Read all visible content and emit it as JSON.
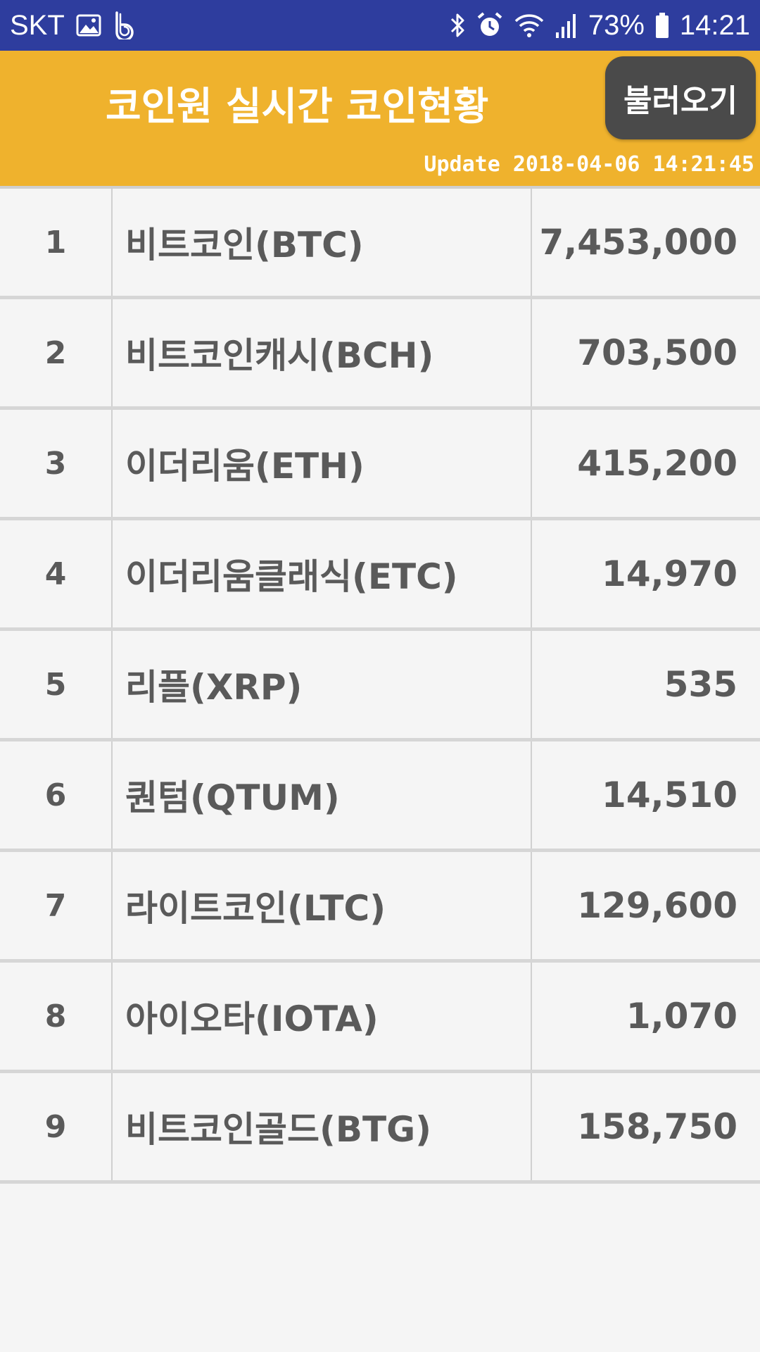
{
  "status_bar": {
    "carrier": "SKT",
    "battery": "73%",
    "time": "14:21",
    "icons": [
      "image-icon",
      "b-app-icon",
      "bluetooth-icon",
      "alarm-icon",
      "wifi-icon",
      "signal-icon",
      "battery-icon"
    ]
  },
  "header": {
    "title": "코인원 실시간 코인현황",
    "load_button": "불러오기",
    "update_text": "Update 2018-04-06 14:21:45",
    "background_color": "#efb22d"
  },
  "coins": [
    {
      "rank": "1",
      "name": "비트코인(BTC)",
      "price": "7,453,000"
    },
    {
      "rank": "2",
      "name": "비트코인캐시(BCH)",
      "price": "703,500"
    },
    {
      "rank": "3",
      "name": "이더리움(ETH)",
      "price": "415,200"
    },
    {
      "rank": "4",
      "name": "이더리움클래식(ETC)",
      "price": "14,970"
    },
    {
      "rank": "5",
      "name": "리플(XRP)",
      "price": "535"
    },
    {
      "rank": "6",
      "name": "퀀텀(QTUM)",
      "price": "14,510"
    },
    {
      "rank": "7",
      "name": "라이트코인(LTC)",
      "price": "129,600"
    },
    {
      "rank": "8",
      "name": "아이오타(IOTA)",
      "price": "1,070"
    },
    {
      "rank": "9",
      "name": "비트코인골드(BTG)",
      "price": "158,750"
    }
  ]
}
